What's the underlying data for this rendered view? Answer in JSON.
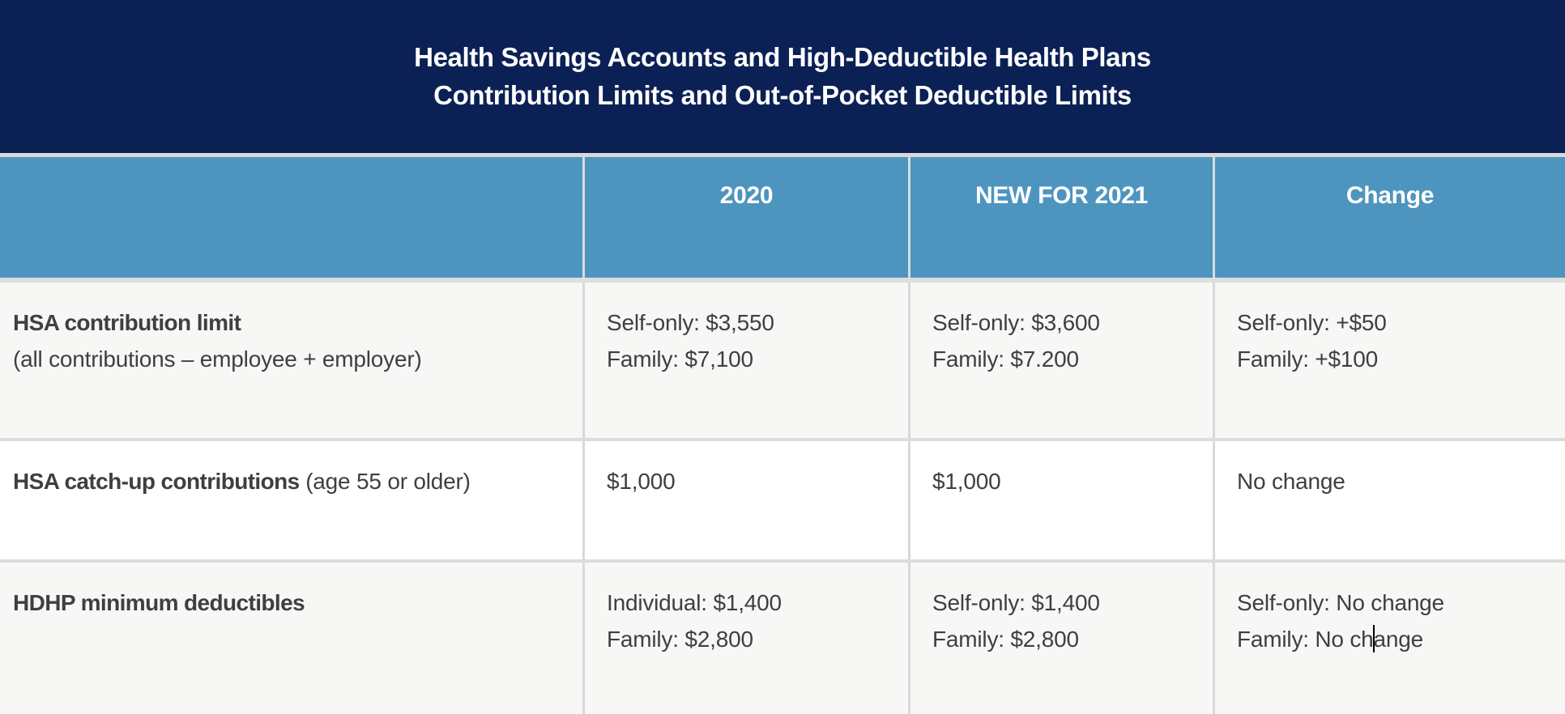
{
  "banner": {
    "title_line1": "Health Savings Accounts and High-Deductible Health Plans",
    "title_line2": "Contribution Limits and Out-of-Pocket Deductible Limits"
  },
  "table": {
    "columns": [
      {
        "label": ""
      },
      {
        "label": "2020"
      },
      {
        "label": "NEW FOR 2021"
      },
      {
        "label": "Change"
      }
    ],
    "rows": [
      {
        "name": "hsa-contribution-limit",
        "header_parts": [
          {
            "text": "HSA contribution limit",
            "bold": true
          },
          {
            "text": "(all contributions – employee + employer)",
            "bold": false
          }
        ],
        "header_layout": "stacked",
        "cells": [
          {
            "lines": [
              "Self-only: $3,550",
              "Family: $7,100"
            ]
          },
          {
            "lines": [
              "Self-only: $3,600",
              "Family: $7.200"
            ]
          },
          {
            "lines": [
              "Self-only: +$50",
              "Family: +$100"
            ]
          }
        ]
      },
      {
        "name": "hsa-catch-up-contributions",
        "header_parts": [
          {
            "text": "HSA catch-up contributions",
            "bold": true
          },
          {
            "text": "(age 55 or older)",
            "bold": false
          }
        ],
        "header_layout": "inline",
        "cells": [
          {
            "lines": [
              "$1,000"
            ]
          },
          {
            "lines": [
              "$1,000"
            ]
          },
          {
            "lines": [
              "No change"
            ]
          }
        ]
      },
      {
        "name": "hdhp-minimum-deductibles",
        "header_parts": [
          {
            "text": "HDHP minimum deductibles",
            "bold": true
          }
        ],
        "header_layout": "stacked",
        "cells": [
          {
            "lines": [
              "Individual: $1,400",
              "Family: $2,800"
            ]
          },
          {
            "lines": [
              "Self-only: $1,400",
              "Family: $2,800"
            ]
          },
          {
            "lines": [
              "Self-only: No change",
              {
                "pre": "Family: No ch",
                "post": "ange",
                "caret": true
              }
            ]
          }
        ]
      }
    ]
  },
  "colors": {
    "banner_navy": "#0b2155",
    "header_blue": "#4d95bf",
    "divider_gray": "#d9d9d9",
    "row_alt_bg": "#f7f7f6",
    "body_text": "#3f3f3f",
    "caret": "#000000"
  }
}
